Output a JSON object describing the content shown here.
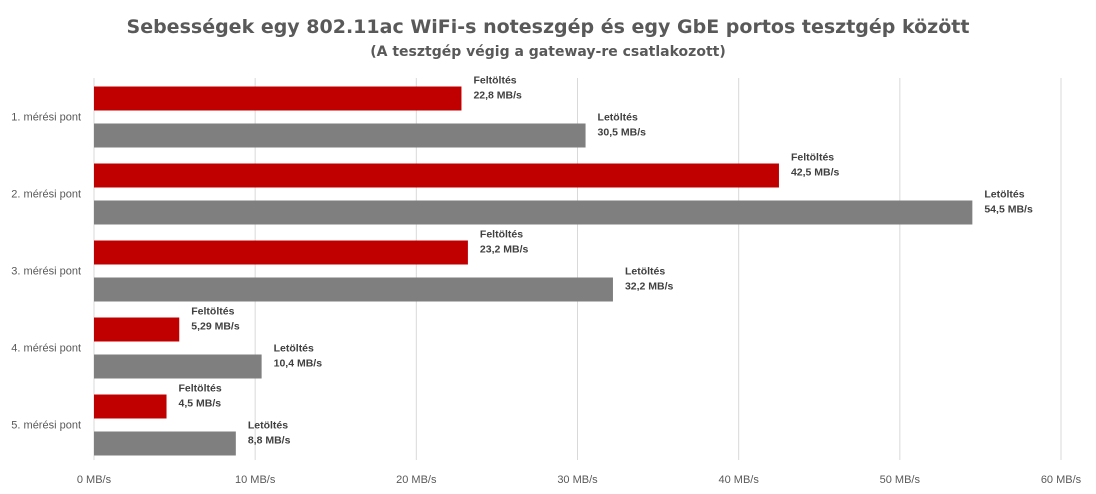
{
  "chart_data": {
    "type": "bar",
    "orientation": "horizontal",
    "title": "Sebességek egy 802.11ac WiFi-s noteszgép és egy GbE portos tesztgép között",
    "subtitle": "(A tesztgép végig a gateway-re csatlakozott)",
    "categories": [
      "1. mérési pont",
      "2. mérési pont",
      "3. mérési pont",
      "4. mérési pont",
      "5. mérési pont"
    ],
    "series": [
      {
        "name": "Feltöltés",
        "color": "#c00000",
        "values": [
          22.8,
          42.5,
          23.2,
          5.29,
          4.5
        ],
        "labels": [
          "22,8 MB/s",
          "42,5 MB/s",
          "23,2 MB/s",
          "5,29 MB/s",
          "4,5 MB/s"
        ]
      },
      {
        "name": "Letöltés",
        "color": "#7f7f7f",
        "values": [
          30.5,
          54.5,
          32.2,
          10.4,
          8.8
        ],
        "labels": [
          "30,5 MB/s",
          "54,5 MB/s",
          "32,2 MB/s",
          "10,4 MB/s",
          "8,8 MB/s"
        ]
      }
    ],
    "x_ticks": [
      0,
      10,
      20,
      30,
      40,
      50,
      60
    ],
    "x_tick_labels": [
      "0 MB/s",
      "10 MB/s",
      "20 MB/s",
      "30 MB/s",
      "40 MB/s",
      "50 MB/s",
      "60 MB/s"
    ],
    "xlim": [
      0,
      60
    ],
    "grid": true,
    "legend": "none"
  }
}
